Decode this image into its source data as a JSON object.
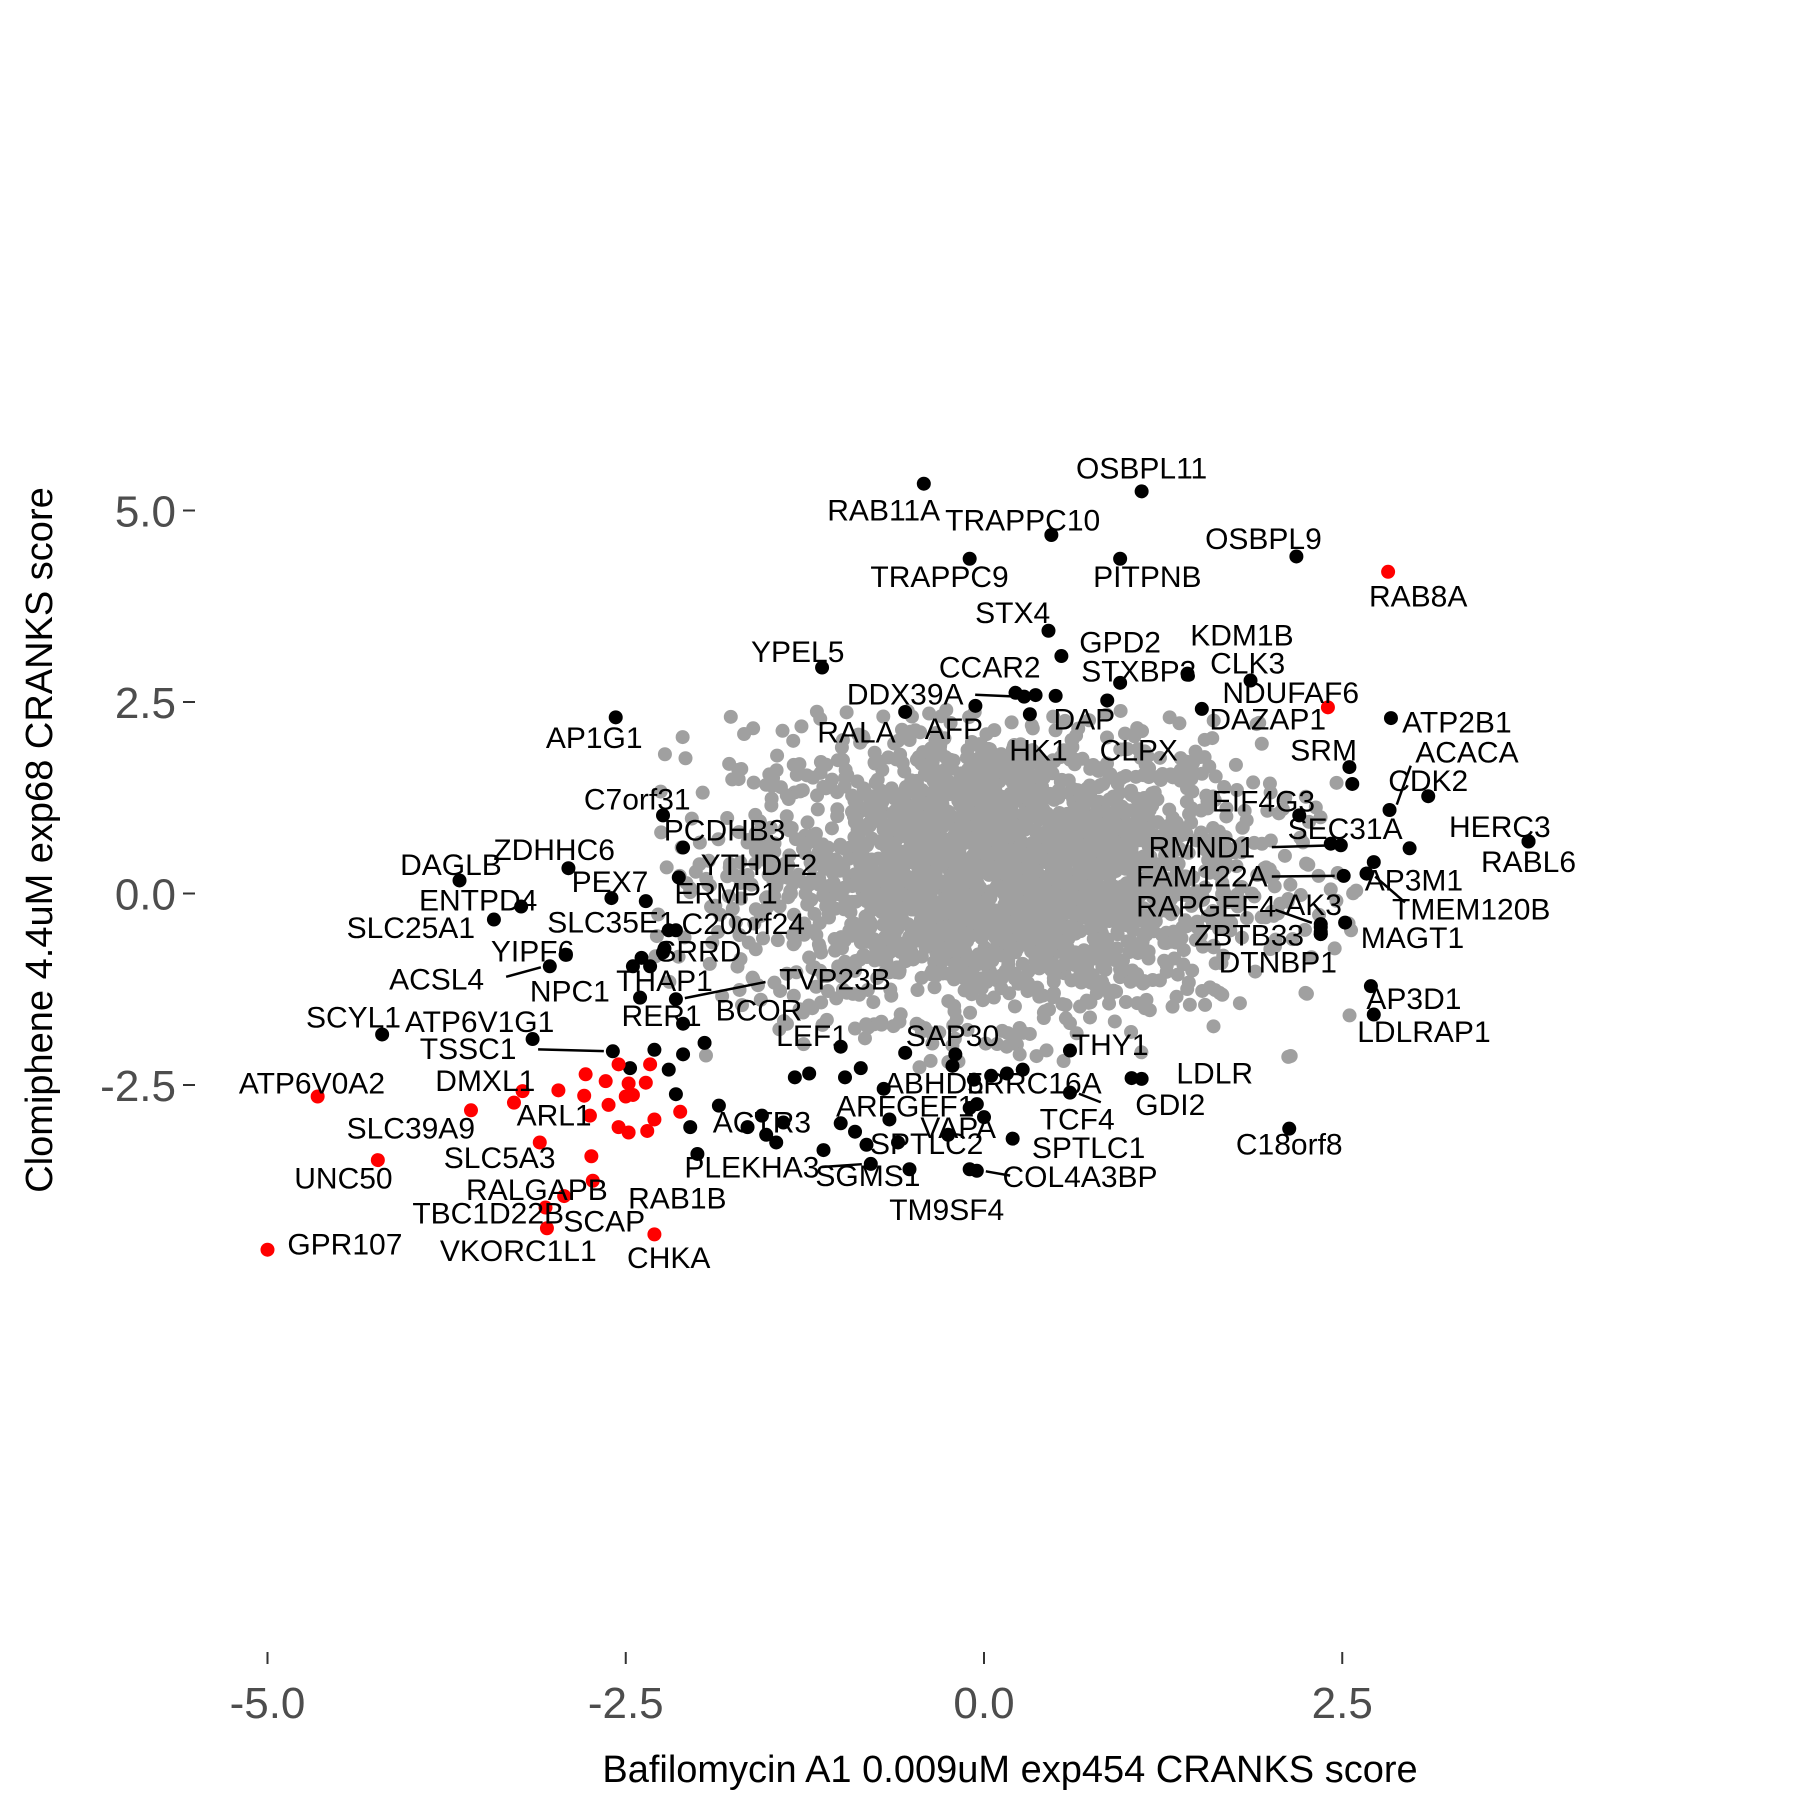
{
  "chart_data": {
    "type": "scatter",
    "xlabel": "Bafilomycin A1 0.009uM exp454 CRANKS score",
    "ylabel": "Clomiphene 4.4uM exp68 CRANKS score",
    "xlim": [
      -5.45,
      4.45
    ],
    "ylim": [
      -4.95,
      5.68
    ],
    "xticks": [
      -5.0,
      -2.5,
      0.0,
      2.5
    ],
    "yticks": [
      -2.5,
      0.0,
      2.5,
      5.0
    ],
    "xtick_labels": [
      "-5.0",
      "-2.5",
      "0.0",
      "2.5"
    ],
    "ytick_labels": [
      "-2.5",
      "0.0",
      "2.5",
      "5.0"
    ],
    "grid": false,
    "legend": "none",
    "colors": {
      "background_genes": "#a0a0a0",
      "labeled_genes": "#000000",
      "highlighted_genes": "#ff0000"
    },
    "background_cloud": {
      "description_note": "",
      "center": [
        0.1,
        0.3
      ],
      "x_spread": 0.9,
      "y_spread": 0.95,
      "count": 2600
    },
    "labeled_points": [
      {
        "gene": "RAB11A",
        "x": -0.42,
        "y": 5.35,
        "color": "black",
        "lx": -0.7,
        "ly": 5.0
      },
      {
        "gene": "OSBPL11",
        "x": 1.1,
        "y": 5.25,
        "color": "black",
        "lx": 1.1,
        "ly": 5.55
      },
      {
        "gene": "TRAPPC10",
        "x": 0.47,
        "y": 4.68,
        "color": "black",
        "lx": 0.27,
        "ly": 4.87
      },
      {
        "gene": "OSBPL9",
        "x": 2.18,
        "y": 4.4,
        "color": "black",
        "lx": 1.95,
        "ly": 4.63
      },
      {
        "gene": "TRAPPC9",
        "x": -0.1,
        "y": 4.37,
        "color": "black",
        "lx": -0.31,
        "ly": 4.13
      },
      {
        "gene": "PITPNB",
        "x": 0.95,
        "y": 4.37,
        "color": "black",
        "lx": 1.14,
        "ly": 4.13
      },
      {
        "gene": "RAB8A",
        "x": 2.82,
        "y": 4.2,
        "color": "red",
        "lx": 3.03,
        "ly": 3.88
      },
      {
        "gene": "STX4",
        "x": 0.45,
        "y": 3.43,
        "color": "black",
        "lx": 0.2,
        "ly": 3.66
      },
      {
        "gene": "KDM1B",
        "x": 1.42,
        "y": 2.87,
        "color": "black",
        "lx": 1.8,
        "ly": 3.37
      },
      {
        "gene": "GPD2",
        "x": 0.54,
        "y": 3.1,
        "color": "black",
        "lx": 0.95,
        "ly": 3.28
      },
      {
        "gene": "YPEL5",
        "x": -1.13,
        "y": 2.95,
        "color": "black",
        "lx": -1.3,
        "ly": 3.15
      },
      {
        "gene": "CCAR2",
        "x": 0.22,
        "y": 2.62,
        "color": "black",
        "lx": 0.04,
        "ly": 2.95
      },
      {
        "gene": "STXBP3",
        "x": 0.95,
        "y": 2.75,
        "color": "black",
        "lx": 1.08,
        "ly": 2.9
      },
      {
        "gene": "CLK3",
        "x": 1.86,
        "y": 2.78,
        "color": "black",
        "lx": 1.84,
        "ly": 3.0
      },
      {
        "gene": "DDX39A",
        "x": 0.28,
        "y": 2.57,
        "color": "black",
        "lx": -0.55,
        "ly": 2.6
      },
      {
        "gene": "",
        "x": 0.36,
        "y": 2.59,
        "color": "black",
        "lx": 0.0,
        "ly": 0.0
      },
      {
        "gene": "NDUFAF6",
        "x": 2.4,
        "y": 2.43,
        "color": "red",
        "lx": 2.14,
        "ly": 2.62
      },
      {
        "gene": "AP1G1",
        "x": -2.57,
        "y": 2.3,
        "color": "black",
        "lx": -2.72,
        "ly": 2.03
      },
      {
        "gene": "RALA",
        "x": -0.55,
        "y": 2.37,
        "color": "black",
        "lx": -0.89,
        "ly": 2.1
      },
      {
        "gene": "AFP",
        "x": -0.06,
        "y": 2.45,
        "color": "black",
        "lx": -0.21,
        "ly": 2.15
      },
      {
        "gene": "DAP",
        "x": 0.32,
        "y": 2.34,
        "color": "black",
        "lx": 0.7,
        "ly": 2.27
      },
      {
        "gene": "DAZAP1",
        "x": 1.52,
        "y": 2.41,
        "color": "black",
        "lx": 1.98,
        "ly": 2.27
      },
      {
        "gene": "ATP2B1",
        "x": 2.84,
        "y": 2.29,
        "color": "black",
        "lx": 3.3,
        "ly": 2.23
      },
      {
        "gene": "CLPX",
        "x": 0.86,
        "y": 2.52,
        "color": "black",
        "lx": 1.08,
        "ly": 1.87
      },
      {
        "gene": "HK1",
        "x": 0.5,
        "y": 2.58,
        "color": "black",
        "lx": 0.38,
        "ly": 1.87
      },
      {
        "gene": "SRM",
        "x": 2.55,
        "y": 1.65,
        "color": "black",
        "lx": 2.37,
        "ly": 1.87
      },
      {
        "gene": "ACACA",
        "x": 2.83,
        "y": 1.09,
        "color": "black",
        "lx": 3.37,
        "ly": 1.84
      },
      {
        "gene": "",
        "x": 2.57,
        "y": 1.43,
        "color": "black",
        "lx": 0.0,
        "ly": 0.0
      },
      {
        "gene": "CDK2",
        "x": 3.1,
        "y": 1.27,
        "color": "black",
        "lx": 3.1,
        "ly": 1.47
      },
      {
        "gene": "C7orf31",
        "x": -2.24,
        "y": 1.02,
        "color": "black",
        "lx": -2.42,
        "ly": 1.23
      },
      {
        "gene": "EIF4G3",
        "x": 2.2,
        "y": 1.02,
        "color": "black",
        "lx": 1.95,
        "ly": 1.2
      },
      {
        "gene": "PCDHB3",
        "x": -2.1,
        "y": 0.6,
        "color": "black",
        "lx": -1.81,
        "ly": 0.82
      },
      {
        "gene": "SEC31A",
        "x": 2.42,
        "y": 0.65,
        "color": "black",
        "lx": 2.52,
        "ly": 0.84
      },
      {
        "gene": "HERC3",
        "x": 3.8,
        "y": 0.68,
        "color": "black",
        "lx": 3.6,
        "ly": 0.87
      },
      {
        "gene": "RMND1",
        "x": 2.49,
        "y": 0.63,
        "color": "black",
        "lx": 1.52,
        "ly": 0.6
      },
      {
        "gene": "",
        "x": 2.97,
        "y": 0.59,
        "color": "black",
        "lx": 0.0,
        "ly": 0.0
      },
      {
        "gene": "RABL6",
        "x": 3.8,
        "y": 0.68,
        "color": "black",
        "lx": 3.8,
        "ly": 0.41
      },
      {
        "gene": "ZDHHC6",
        "x": -2.9,
        "y": 0.33,
        "color": "black",
        "lx": -3.0,
        "ly": 0.57
      },
      {
        "gene": "YTHDF2",
        "x": -2.13,
        "y": 0.21,
        "color": "black",
        "lx": -1.57,
        "ly": 0.37
      },
      {
        "gene": "DAGLB",
        "x": -3.66,
        "y": 0.17,
        "color": "black",
        "lx": -3.72,
        "ly": 0.37
      },
      {
        "gene": "",
        "x": 2.72,
        "y": 0.41,
        "color": "black",
        "lx": 0.0,
        "ly": 0.0
      },
      {
        "gene": "FAM122A",
        "x": 2.51,
        "y": 0.23,
        "color": "black",
        "lx": 1.52,
        "ly": 0.22
      },
      {
        "gene": "AP3M1",
        "x": 2.67,
        "y": 0.26,
        "color": "black",
        "lx": 3.0,
        "ly": 0.17
      },
      {
        "gene": "PEX7",
        "x": -2.6,
        "y": -0.06,
        "color": "black",
        "lx": -2.61,
        "ly": 0.15
      },
      {
        "gene": "ERMP1",
        "x": -2.36,
        "y": -0.1,
        "color": "black",
        "lx": -1.8,
        "ly": 0.0
      },
      {
        "gene": "ENTPD4",
        "x": -3.23,
        "y": -0.17,
        "color": "black",
        "lx": -3.53,
        "ly": -0.09
      },
      {
        "gene": "TMEM120B",
        "x": 2.67,
        "y": 0.26,
        "color": "black",
        "lx": 3.4,
        "ly": -0.21
      },
      {
        "gene": "RAPGEF4",
        "x": 2.35,
        "y": -0.4,
        "color": "black",
        "lx": 1.55,
        "ly": -0.17
      },
      {
        "gene": "AK3",
        "x": 2.35,
        "y": -0.44,
        "color": "black",
        "lx": 2.3,
        "ly": -0.15
      },
      {
        "gene": "SLC35E1",
        "x": -2.2,
        "y": -0.48,
        "color": "black",
        "lx": -2.6,
        "ly": -0.38
      },
      {
        "gene": "C20orf24",
        "x": -2.15,
        "y": -0.48,
        "color": "black",
        "lx": -1.68,
        "ly": -0.4
      },
      {
        "gene": "SLC25A1",
        "x": -3.42,
        "y": -0.34,
        "color": "black",
        "lx": -4.0,
        "ly": -0.45
      },
      {
        "gene": "MAGT1",
        "x": 2.52,
        "y": -0.38,
        "color": "black",
        "lx": 2.99,
        "ly": -0.58
      },
      {
        "gene": "ZBTB33",
        "x": 2.35,
        "y": -0.5,
        "color": "black",
        "lx": 1.85,
        "ly": -0.55
      },
      {
        "gene": "",
        "x": 2.35,
        "y": -0.53,
        "color": "black",
        "lx": 0.0,
        "ly": 0.0
      },
      {
        "gene": "YIPF6",
        "x": -2.92,
        "y": -0.8,
        "color": "black",
        "lx": -3.15,
        "ly": -0.76
      },
      {
        "gene": "SRRD",
        "x": -2.23,
        "y": -0.72,
        "color": "black",
        "lx": -1.99,
        "ly": -0.76
      },
      {
        "gene": "",
        "x": -2.24,
        "y": -0.77,
        "color": "black",
        "lx": 0.0,
        "ly": 0.0
      },
      {
        "gene": "DTNBP1",
        "x": 2.35,
        "y": -0.53,
        "color": "black",
        "lx": 2.05,
        "ly": -0.9
      },
      {
        "gene": "",
        "x": -2.39,
        "y": -0.84,
        "color": "black",
        "lx": 0.0,
        "ly": 0.0
      },
      {
        "gene": "ACSL4",
        "x": -3.03,
        "y": -0.95,
        "color": "black",
        "lx": -3.82,
        "ly": -1.12
      },
      {
        "gene": "NPC1",
        "x": -2.45,
        "y": -0.95,
        "color": "black",
        "lx": -2.89,
        "ly": -1.28
      },
      {
        "gene": "THAP1",
        "x": -2.33,
        "y": -0.95,
        "color": "black",
        "lx": -2.23,
        "ly": -1.14
      },
      {
        "gene": "TVP23B",
        "x": -2.15,
        "y": -1.38,
        "color": "black",
        "lx": -1.04,
        "ly": -1.12
      },
      {
        "gene": "AP3D1",
        "x": 2.7,
        "y": -1.21,
        "color": "black",
        "lx": 3.0,
        "ly": -1.38
      },
      {
        "gene": "",
        "x": -2.4,
        "y": -1.36,
        "color": "black",
        "lx": 0.0,
        "ly": 0.0
      },
      {
        "gene": "RER1",
        "x": -2.1,
        "y": -1.7,
        "color": "black",
        "lx": -2.25,
        "ly": -1.6
      },
      {
        "gene": "BCOR",
        "x": -1.95,
        "y": -1.95,
        "color": "black",
        "lx": -1.57,
        "ly": -1.53
      },
      {
        "gene": "LDLRAP1",
        "x": 2.72,
        "y": -1.58,
        "color": "black",
        "lx": 3.07,
        "ly": -1.81
      },
      {
        "gene": "SCYL1",
        "x": -4.2,
        "y": -1.84,
        "color": "black",
        "lx": -4.4,
        "ly": -1.62
      },
      {
        "gene": "ATP6V1G1",
        "x": -3.15,
        "y": -1.9,
        "color": "black",
        "lx": -3.52,
        "ly": -1.68
      },
      {
        "gene": "LEF1",
        "x": -1.0,
        "y": -2.0,
        "color": "black",
        "lx": -1.2,
        "ly": -1.86
      },
      {
        "gene": "SAP30",
        "x": -0.2,
        "y": -2.1,
        "color": "black",
        "lx": -0.22,
        "ly": -1.86
      },
      {
        "gene": "THY1",
        "x": 0.6,
        "y": -2.05,
        "color": "black",
        "lx": 0.88,
        "ly": -1.98
      },
      {
        "gene": "TSSC1",
        "x": -2.59,
        "y": -2.06,
        "color": "black",
        "lx": -3.6,
        "ly": -2.03
      },
      {
        "gene": "",
        "x": -2.3,
        "y": -2.04,
        "color": "black",
        "lx": 0.0,
        "ly": 0.0
      },
      {
        "gene": "",
        "x": -2.1,
        "y": -2.1,
        "color": "black",
        "lx": 0.0,
        "ly": 0.0
      },
      {
        "gene": "ATP6V0A2",
        "x": -4.65,
        "y": -2.65,
        "color": "red",
        "lx": -4.69,
        "ly": -2.48
      },
      {
        "gene": "DMXL1",
        "x": -3.28,
        "y": -2.73,
        "color": "red",
        "lx": -3.48,
        "ly": -2.45
      },
      {
        "gene": "LDLR",
        "x": 1.1,
        "y": -2.42,
        "color": "black",
        "lx": 1.61,
        "ly": -2.35
      },
      {
        "gene": "ABHD5",
        "x": -0.7,
        "y": -2.55,
        "color": "black",
        "lx": -0.35,
        "ly": -2.48
      },
      {
        "gene": "LRRC16A",
        "x": 0.27,
        "y": -2.3,
        "color": "black",
        "lx": 0.35,
        "ly": -2.48
      },
      {
        "gene": "",
        "x": 1.03,
        "y": -2.41,
        "color": "black",
        "lx": 0.0,
        "ly": 0.0
      },
      {
        "gene": "GDI2",
        "x": 0.6,
        "y": -2.6,
        "color": "black",
        "lx": 1.3,
        "ly": -2.76
      },
      {
        "gene": "ARFGEF1",
        "x": -0.1,
        "y": -2.8,
        "color": "black",
        "lx": -0.55,
        "ly": -2.78
      },
      {
        "gene": "ARL1",
        "x": -2.79,
        "y": -2.64,
        "color": "red",
        "lx": -3.0,
        "ly": -2.9
      },
      {
        "gene": "TCF4",
        "x": 0.0,
        "y": -2.92,
        "color": "black",
        "lx": 0.65,
        "ly": -2.95
      },
      {
        "gene": "ACTR3",
        "x": -1.4,
        "y": -2.99,
        "color": "black",
        "lx": -1.55,
        "ly": -2.99
      },
      {
        "gene": "VAPA",
        "x": -0.05,
        "y": -2.75,
        "color": "black",
        "lx": -0.18,
        "ly": -3.06
      },
      {
        "gene": "SLC39A9",
        "x": -3.58,
        "y": -2.83,
        "color": "red",
        "lx": -4.0,
        "ly": -3.07
      },
      {
        "gene": "C18orf8",
        "x": 2.13,
        "y": -3.07,
        "color": "black",
        "lx": 2.13,
        "ly": -3.28
      },
      {
        "gene": "SPTLC2",
        "x": -0.9,
        "y": -3.11,
        "color": "black",
        "lx": -0.4,
        "ly": -3.27
      },
      {
        "gene": "SPTLC1",
        "x": 0.2,
        "y": -3.2,
        "color": "black",
        "lx": 0.73,
        "ly": -3.32
      },
      {
        "gene": "SLC5A3",
        "x": -3.1,
        "y": -3.25,
        "color": "red",
        "lx": -3.38,
        "ly": -3.45
      },
      {
        "gene": "UNC50",
        "x": -4.23,
        "y": -3.48,
        "color": "red",
        "lx": -4.47,
        "ly": -3.72
      },
      {
        "gene": "PLEKHA3",
        "x": -0.79,
        "y": -3.53,
        "color": "black",
        "lx": -1.62,
        "ly": -3.58
      },
      {
        "gene": "SGMS1",
        "x": -0.52,
        "y": -3.6,
        "color": "black",
        "lx": -0.81,
        "ly": -3.69
      },
      {
        "gene": "COL4A3BP",
        "x": -0.05,
        "y": -3.62,
        "color": "black",
        "lx": 0.67,
        "ly": -3.7
      },
      {
        "gene": "RALGAPB",
        "x": -2.74,
        "y": -3.43,
        "color": "red",
        "lx": -3.12,
        "ly": -3.87
      },
      {
        "gene": "RAB1B",
        "x": -2.73,
        "y": -3.75,
        "color": "red",
        "lx": -2.14,
        "ly": -3.98
      },
      {
        "gene": "TM9SF4",
        "x": -0.1,
        "y": -3.6,
        "color": "black",
        "lx": -0.26,
        "ly": -4.13
      },
      {
        "gene": "TBC1D22B",
        "x": -2.93,
        "y": -3.95,
        "color": "red",
        "lx": -3.46,
        "ly": -4.18
      },
      {
        "gene": "SCAP",
        "x": -3.06,
        "y": -4.1,
        "color": "red",
        "lx": -2.65,
        "ly": -4.28
      },
      {
        "gene": "GPR107",
        "x": -5.0,
        "y": -4.65,
        "color": "red",
        "lx": -4.46,
        "ly": -4.58
      },
      {
        "gene": "VKORC1L1",
        "x": -3.05,
        "y": -4.37,
        "color": "red",
        "lx": -3.25,
        "ly": -4.67
      },
      {
        "gene": "CHKA",
        "x": -2.3,
        "y": -4.45,
        "color": "red",
        "lx": -2.2,
        "ly": -4.76
      }
    ],
    "other_black_points": [
      [
        -1.22,
        -2.35
      ],
      [
        -0.97,
        -2.4
      ],
      [
        -0.86,
        -2.28
      ],
      [
        -0.55,
        -2.08
      ],
      [
        -0.22,
        -2.25
      ],
      [
        -0.07,
        -2.43
      ],
      [
        0.05,
        -2.38
      ],
      [
        0.16,
        -2.35
      ],
      [
        -1.55,
        -2.9
      ],
      [
        -1.32,
        -2.4
      ],
      [
        -1.85,
        -2.77
      ],
      [
        -1.52,
        -3.15
      ],
      [
        -1.0,
        -3.0
      ],
      [
        -0.82,
        -3.28
      ],
      [
        -1.12,
        -3.35
      ],
      [
        -2.0,
        -3.4
      ],
      [
        -1.45,
        -3.25
      ],
      [
        -0.25,
        -3.15
      ],
      [
        -0.6,
        -3.25
      ],
      [
        -2.15,
        -2.62
      ],
      [
        -2.47,
        -2.28
      ],
      [
        -2.2,
        -2.3
      ],
      [
        -2.05,
        -3.05
      ],
      [
        -0.66,
        -2.95
      ],
      [
        -1.65,
        -3.05
      ]
    ],
    "other_red_points": [
      [
        -2.55,
        -2.23
      ],
      [
        -2.33,
        -2.23
      ],
      [
        -2.78,
        -2.36
      ],
      [
        -2.64,
        -2.45
      ],
      [
        -2.36,
        -2.47
      ],
      [
        -2.48,
        -2.48
      ],
      [
        -3.22,
        -2.58
      ],
      [
        -2.97,
        -2.57
      ],
      [
        -2.5,
        -2.65
      ],
      [
        -2.62,
        -2.76
      ],
      [
        -2.45,
        -2.63
      ],
      [
        -2.12,
        -2.85
      ],
      [
        -2.3,
        -2.95
      ],
      [
        -2.35,
        -3.1
      ],
      [
        -2.48,
        -3.12
      ],
      [
        -2.55,
        -3.05
      ],
      [
        -2.75,
        -2.9
      ]
    ]
  }
}
